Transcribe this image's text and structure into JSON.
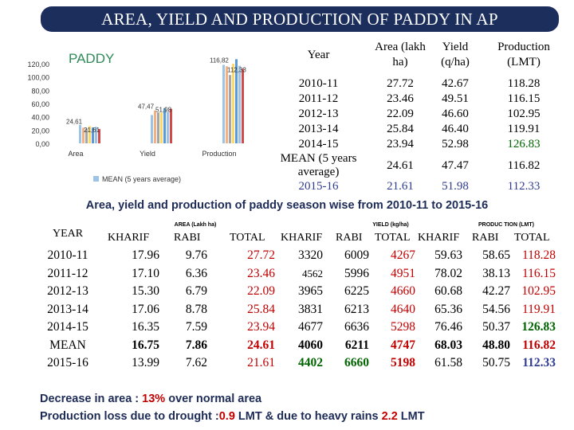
{
  "title": "AREA, YIELD AND PRODUCTION OF PADDY IN AP",
  "chart_data": {
    "type": "bar",
    "title": "PADDY",
    "categories": [
      "Area",
      "Yield",
      "Production"
    ],
    "yticks": [
      "0,00",
      "20,00",
      "40,00",
      "60,00",
      "80,00",
      "100,00",
      "120,00"
    ],
    "ylim": [
      0,
      120
    ],
    "series": [
      {
        "name": "2010-11",
        "values": [
          27.72,
          42.67,
          118.28
        ],
        "color": "#9dc3e6"
      },
      {
        "name": "2011-12",
        "values": [
          23.46,
          49.51,
          116.15
        ],
        "color": "#f4b183"
      },
      {
        "name": "2012-13",
        "values": [
          22.09,
          46.6,
          102.95
        ],
        "color": "#a5a5a5"
      },
      {
        "name": "2013-14",
        "values": [
          25.84,
          46.4,
          119.91
        ],
        "color": "#ffd966"
      },
      {
        "name": "2014-15",
        "values": [
          23.94,
          52.98,
          126.83
        ],
        "color": "#5b9bd5"
      },
      {
        "name": "MEAN (5 years average)",
        "values": [
          24.61,
          47.47,
          116.82
        ],
        "color": "#9dc3e6"
      },
      {
        "name": "2015-16",
        "values": [
          21.61,
          51.98,
          112.33
        ],
        "color": "#d04b4b"
      }
    ],
    "data_labels": [
      "24,61",
      "21,61",
      "47,47",
      "51,98",
      "116,82",
      "112,33"
    ],
    "legend": [
      "MEAN (5 years average)"
    ]
  },
  "summary_table": {
    "headers": {
      "year": "Year",
      "area": "Area (lakh ha)",
      "yield": "Yield (q/ha)",
      "production": "Production (LMT)"
    },
    "rows": [
      {
        "year": "2010-11",
        "area": "27.72",
        "yield": "42.67",
        "production": "118.28"
      },
      {
        "year": "2011-12",
        "area": "23.46",
        "yield": "49.51",
        "production": "116.15"
      },
      {
        "year": "2012-13",
        "area": "22.09",
        "yield": "46.60",
        "production": "102.95"
      },
      {
        "year": "2013-14",
        "area": "25.84",
        "yield": "46.40",
        "production": "119.91"
      },
      {
        "year": "2014-15",
        "area": "23.94",
        "yield": "52.98",
        "production": "126.83"
      },
      {
        "year": "MEAN (5 years average)",
        "area": "24.61",
        "yield": "47.47",
        "production": "116.82"
      },
      {
        "year": "2015-16",
        "area": "21.61",
        "yield": "51.98",
        "production": "112.33"
      }
    ]
  },
  "season_title": "Area, yield and production of paddy season wise from 2010-11 to 2015-16",
  "season_table": {
    "groups": {
      "area": "AREA (Lakh ha)",
      "yield": "YIELD (kg/ha)",
      "production": "PRODUC TION (LMT)"
    },
    "headers": [
      "YEAR",
      "KHARIF",
      "RABI",
      "TOTAL",
      "KHARIF",
      "RABI",
      "TOTAL",
      "KHARIF",
      "RABI",
      "TOTAL"
    ],
    "rows": [
      [
        "2010-11",
        "17.96",
        "9.76",
        "27.72",
        "3320",
        "6009",
        "4267",
        "59.63",
        "58.65",
        "118.28"
      ],
      [
        "2011-12",
        "17.10",
        "6.36",
        "23.46",
        "4562",
        "5996",
        "4951",
        "78.02",
        "38.13",
        "116.15"
      ],
      [
        "2012-13",
        "15.30",
        "6.79",
        "22.09",
        "3965",
        "6225",
        "4660",
        "60.68",
        "42.27",
        "102.95"
      ],
      [
        "2013-14",
        "17.06",
        "8.78",
        "25.84",
        "3831",
        "6213",
        "4640",
        "65.36",
        "54.56",
        "119.91"
      ],
      [
        "2014-15",
        "16.35",
        "7.59",
        "23.94",
        "4677",
        "6636",
        "5298",
        "76.46",
        "50.37",
        "126.83"
      ],
      [
        "MEAN",
        "16.75",
        "7.86",
        "24.61",
        "4060",
        "6211",
        "4747",
        "68.03",
        "48.80",
        "116.82"
      ],
      [
        "2015-16",
        "13.99",
        "7.62",
        "21.61",
        "4402",
        "6660",
        "5198",
        "61.58",
        "50.75",
        "112.33"
      ]
    ]
  },
  "notes": {
    "line1_prefix": "Decrease in area : ",
    "line1_value": "13%",
    "line1_suffix": " over normal area",
    "line2_prefix": "Production loss due to drought :",
    "line2_value1": "0.9",
    "line2_mid": " LMT & due to heavy rains ",
    "line2_value2": "2.2",
    "line2_suffix": " LMT"
  }
}
